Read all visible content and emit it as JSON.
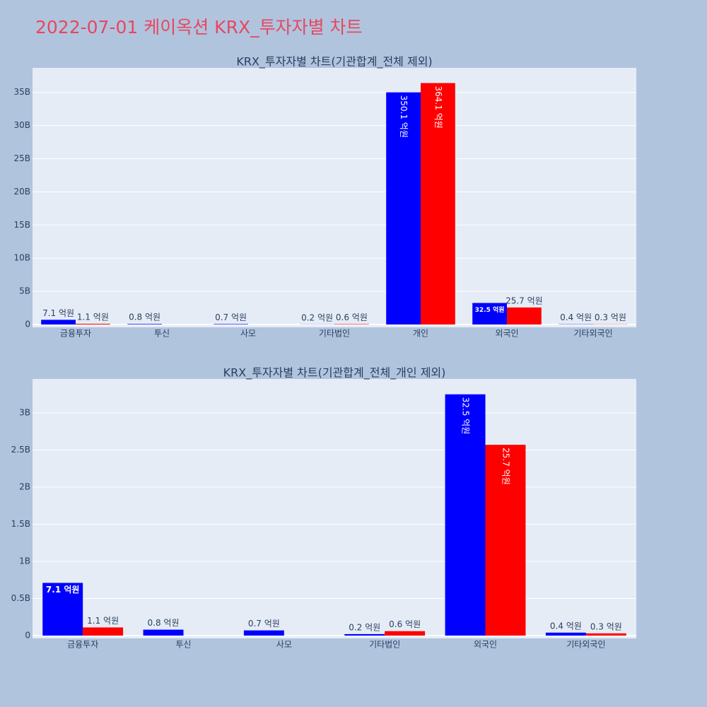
{
  "title": "2022-07-01 케이옥션 KRX_투자자별 차트",
  "chart_data": [
    {
      "type": "bar",
      "title": "KRX_투자자별 차트(기관합계_전체 제외)",
      "categories": [
        "금융투자",
        "투신",
        "사모",
        "기타법인",
        "개인",
        "외국인",
        "기타외국인"
      ],
      "series": [
        {
          "color": "#0000ff",
          "values": [
            710000000,
            80000000,
            70000000,
            20000000,
            35010000000,
            3250000000,
            40000000
          ],
          "value_labels": [
            "7.1 억원",
            "0.8 억원",
            "0.7 억원",
            "0.2 억원",
            "350.1 억원",
            "32.5 억원",
            "0.4 억원"
          ]
        },
        {
          "color": "#ff0000",
          "values": [
            110000000,
            null,
            null,
            60000000,
            36410000000,
            2570000000,
            30000000
          ],
          "value_labels": [
            "1.1 억원",
            null,
            null,
            "0.6 억원",
            "364.1 억원",
            "25.7 억원",
            "0.3 억원"
          ]
        }
      ],
      "ylim": [
        0,
        38700000000
      ],
      "yticks": [
        {
          "value": 0,
          "label": "0"
        },
        {
          "value": 5000000000,
          "label": "5B"
        },
        {
          "value": 10000000000,
          "label": "10B"
        },
        {
          "value": 15000000000,
          "label": "15B"
        },
        {
          "value": 20000000000,
          "label": "20B"
        },
        {
          "value": 25000000000,
          "label": "25B"
        },
        {
          "value": 30000000000,
          "label": "30B"
        },
        {
          "value": 35000000000,
          "label": "35B"
        }
      ],
      "grid": true
    },
    {
      "type": "bar",
      "title": "KRX_투자자별 차트(기관합계_전체_개인 제외)",
      "categories": [
        "금융투자",
        "투신",
        "사모",
        "기타법인",
        "외국인",
        "기타외국인"
      ],
      "series": [
        {
          "color": "#0000ff",
          "values": [
            710000000,
            80000000,
            70000000,
            20000000,
            3250000000,
            40000000
          ],
          "value_labels": [
            "7.1 억원",
            "0.8 억원",
            "0.7 억원",
            "0.2 억원",
            "32.5 억원",
            "0.4 억원"
          ]
        },
        {
          "color": "#ff0000",
          "values": [
            110000000,
            null,
            null,
            60000000,
            2570000000,
            30000000
          ],
          "value_labels": [
            "1.1 억원",
            null,
            null,
            "0.6 억원",
            "25.7 억원",
            "0.3 억원"
          ]
        }
      ],
      "ylim": [
        0,
        3457000000
      ],
      "yticks": [
        {
          "value": 0,
          "label": "0"
        },
        {
          "value": 500000000,
          "label": "0.5B"
        },
        {
          "value": 1000000000,
          "label": "1B"
        },
        {
          "value": 1500000000,
          "label": "1.5B"
        },
        {
          "value": 2000000000,
          "label": "2B"
        },
        {
          "value": 2500000000,
          "label": "2.5B"
        },
        {
          "value": 3000000000,
          "label": "3B"
        }
      ],
      "grid": true
    }
  ]
}
